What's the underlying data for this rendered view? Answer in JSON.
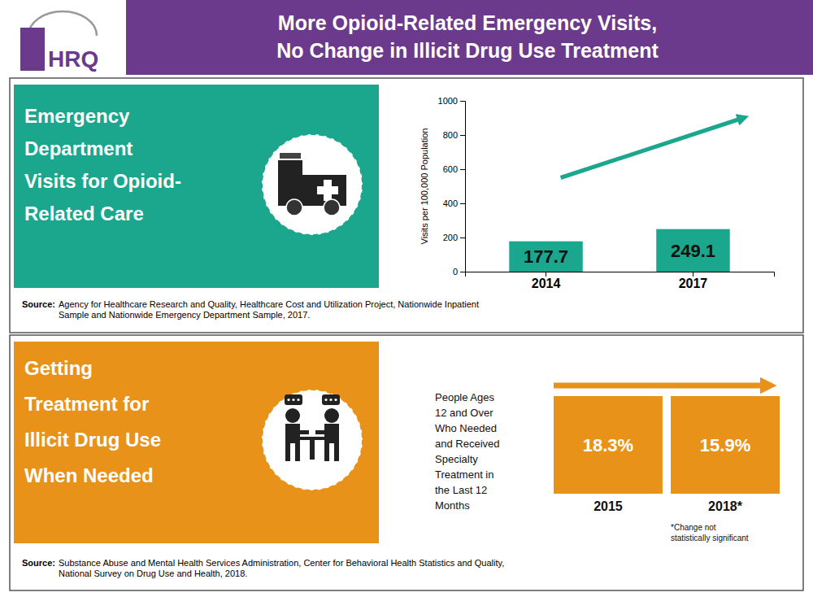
{
  "title": "More Opioid-Related Emergency Visits,\nNo Change in Illicit Drug Use Treatment",
  "color": "#6B3A8D",
  "annotations": [
    "HRQ"
  ],
  "chart_data": [
    {
      "type": "bar",
      "subtitle": "Emergency\nDepartment\nVisits for Opioid-\nRelated Care",
      "categories": [
        "2014",
        "2017"
      ],
      "values": [
        177.7,
        249.1
      ],
      "color": "#1BA68E",
      "ylim": [
        0,
        1000
      ],
      "yticks": [
        0,
        200,
        400,
        600,
        800,
        1000
      ],
      "ylabel": "Visits per 100,000 Population",
      "data_labels": true,
      "grid": false,
      "annotations": [
        "Source:",
        "Agency for Healthcare Research and Quality, Healthcare Cost and Utilization Project, Nationwide Inpatient\nSample and Nationwide Emergency Department Sample, 2017."
      ]
    },
    {
      "type": "tile",
      "subtitle": "Getting\nTreatment for\nIllicit Drug Use\nWhen Needed",
      "categories": [
        "2015",
        "2018*"
      ],
      "values": [
        18.3,
        15.9
      ],
      "value_labels": [
        "18.3%",
        "15.9%"
      ],
      "color": "#E8921A",
      "data_labels": true,
      "annotations": [
        "People Ages\n12 and Over\nWho Needed\nand Received\nSpecialty\nTreatment in\nthe Last 12\nMonths",
        "*Change not\nstatistically significant",
        "Source:",
        "Substance Abuse and Mental Health Services Administration, Center for Behavioral Health Statistics and Quality,\nNational Survey on Drug Use and Health, 2018."
      ]
    }
  ]
}
